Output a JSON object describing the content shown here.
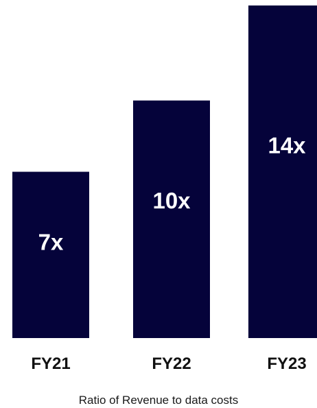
{
  "chart_data": {
    "type": "bar",
    "categories": [
      "FY21",
      "FY22",
      "FY23"
    ],
    "values": [
      7,
      10,
      14
    ],
    "data_labels": [
      "7x",
      "10x",
      "14x"
    ],
    "title": "",
    "xlabel": "Ratio of Revenue to data costs",
    "ylabel": "",
    "ylim": [
      0,
      14
    ],
    "grid": false,
    "legend": "none",
    "bar_color": "#05033a",
    "label_color": "#ffffff",
    "category_label_color": "#111111"
  }
}
